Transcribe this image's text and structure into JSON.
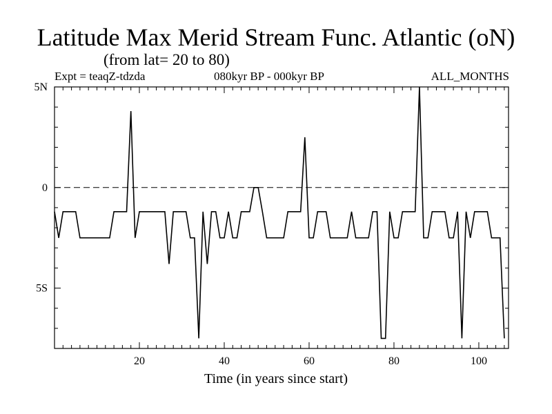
{
  "chart_data": {
    "type": "line",
    "title": "Latitude Max Merid Stream Func. Atlantic (oN)",
    "subtitle": "(from lat= 20 to 80)",
    "annotations": {
      "experiment": "Expt = teaqZ-tdzda",
      "period": "080kyr BP - 000kyr BP",
      "months": "ALL_MONTHS"
    },
    "xlabel": "Time (in years since start)",
    "ylabel": "",
    "xlim": [
      0,
      107
    ],
    "ylim": [
      -8,
      5
    ],
    "x_ticks": [
      {
        "value": 20,
        "label": "20"
      },
      {
        "value": 40,
        "label": "40"
      },
      {
        "value": 60,
        "label": "60"
      },
      {
        "value": 80,
        "label": "80"
      },
      {
        "value": 100,
        "label": "100"
      }
    ],
    "y_ticks": [
      {
        "value": 5,
        "label": "5N"
      },
      {
        "value": 0,
        "label": "0"
      },
      {
        "value": -5,
        "label": "5S"
      }
    ],
    "reference_line": {
      "y": 0,
      "style": "dashed"
    },
    "grid": false,
    "series": [
      {
        "values": [
          [
            0,
            -1.2
          ],
          [
            1,
            -2.5
          ],
          [
            2,
            -1.2
          ],
          [
            3,
            -1.2
          ],
          [
            4,
            -1.2
          ],
          [
            5,
            -1.2
          ],
          [
            6,
            -2.5
          ],
          [
            7,
            -2.5
          ],
          [
            8,
            -2.5
          ],
          [
            9,
            -2.5
          ],
          [
            10,
            -2.5
          ],
          [
            11,
            -2.5
          ],
          [
            12,
            -2.5
          ],
          [
            13,
            -2.5
          ],
          [
            14,
            -1.2
          ],
          [
            15,
            -1.2
          ],
          [
            16,
            -1.2
          ],
          [
            17,
            -1.2
          ],
          [
            18,
            3.8
          ],
          [
            19,
            -2.5
          ],
          [
            20,
            -1.2
          ],
          [
            21,
            -1.2
          ],
          [
            22,
            -1.2
          ],
          [
            23,
            -1.2
          ],
          [
            24,
            -1.2
          ],
          [
            25,
            -1.2
          ],
          [
            26,
            -1.2
          ],
          [
            27,
            -3.8
          ],
          [
            28,
            -1.2
          ],
          [
            29,
            -1.2
          ],
          [
            30,
            -1.2
          ],
          [
            31,
            -1.2
          ],
          [
            32,
            -2.5
          ],
          [
            33,
            -2.5
          ],
          [
            34,
            -7.5
          ],
          [
            35,
            -1.2
          ],
          [
            36,
            -3.8
          ],
          [
            37,
            -1.2
          ],
          [
            38,
            -1.2
          ],
          [
            39,
            -2.5
          ],
          [
            40,
            -2.5
          ],
          [
            41,
            -1.2
          ],
          [
            42,
            -2.5
          ],
          [
            43,
            -2.5
          ],
          [
            44,
            -1.2
          ],
          [
            45,
            -1.2
          ],
          [
            46,
            -1.2
          ],
          [
            47,
            0
          ],
          [
            48,
            0
          ],
          [
            49,
            -1.2
          ],
          [
            50,
            -2.5
          ],
          [
            51,
            -2.5
          ],
          [
            52,
            -2.5
          ],
          [
            53,
            -2.5
          ],
          [
            54,
            -2.5
          ],
          [
            55,
            -1.2
          ],
          [
            56,
            -1.2
          ],
          [
            57,
            -1.2
          ],
          [
            58,
            -1.2
          ],
          [
            59,
            2.5
          ],
          [
            60,
            -2.5
          ],
          [
            61,
            -2.5
          ],
          [
            62,
            -1.2
          ],
          [
            63,
            -1.2
          ],
          [
            64,
            -1.2
          ],
          [
            65,
            -2.5
          ],
          [
            66,
            -2.5
          ],
          [
            67,
            -2.5
          ],
          [
            68,
            -2.5
          ],
          [
            69,
            -2.5
          ],
          [
            70,
            -1.2
          ],
          [
            71,
            -2.5
          ],
          [
            72,
            -2.5
          ],
          [
            73,
            -2.5
          ],
          [
            74,
            -2.5
          ],
          [
            75,
            -1.2
          ],
          [
            76,
            -1.2
          ],
          [
            77,
            -7.5
          ],
          [
            78,
            -7.5
          ],
          [
            79,
            -1.2
          ],
          [
            80,
            -2.5
          ],
          [
            81,
            -2.5
          ],
          [
            82,
            -1.2
          ],
          [
            83,
            -1.2
          ],
          [
            84,
            -1.2
          ],
          [
            85,
            -1.2
          ],
          [
            86,
            5
          ],
          [
            87,
            -2.5
          ],
          [
            88,
            -2.5
          ],
          [
            89,
            -1.2
          ],
          [
            90,
            -1.2
          ],
          [
            91,
            -1.2
          ],
          [
            92,
            -1.2
          ],
          [
            93,
            -2.5
          ],
          [
            94,
            -2.5
          ],
          [
            95,
            -1.2
          ],
          [
            96,
            -7.5
          ],
          [
            97,
            -1.2
          ],
          [
            98,
            -2.5
          ],
          [
            99,
            -1.2
          ],
          [
            100,
            -1.2
          ],
          [
            101,
            -1.2
          ],
          [
            102,
            -1.2
          ],
          [
            103,
            -2.5
          ],
          [
            104,
            -2.5
          ],
          [
            105,
            -2.5
          ],
          [
            106,
            -7.5
          ]
        ]
      }
    ]
  }
}
